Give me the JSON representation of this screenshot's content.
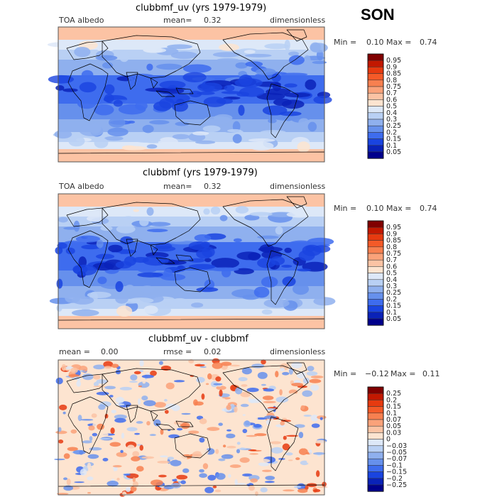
{
  "season": "SON",
  "panels": [
    {
      "title": "clubbmf_uv (yrs 1979-1979)",
      "left_label": "TOA albedo",
      "mean_label": "mean=",
      "mean_value": "0.32",
      "units": "dimensionless",
      "min_label": "Min =",
      "min_value": "0.10",
      "max_label": "Max =",
      "max_value": "0.74",
      "colorbar_ticks": [
        "0.95",
        "0.9",
        "0.85",
        "0.8",
        "0.75",
        "0.7",
        "0.6",
        "0.5",
        "0.4",
        "0.3",
        "0.25",
        "0.2",
        "0.15",
        "0.1",
        "0.05"
      ]
    },
    {
      "title": "clubbmf (yrs 1979-1979)",
      "left_label": "TOA albedo",
      "mean_label": "mean=",
      "mean_value": "0.32",
      "units": "dimensionless",
      "min_label": "Min =",
      "min_value": "0.10",
      "max_label": "Max =",
      "max_value": "0.74",
      "colorbar_ticks": [
        "0.95",
        "0.9",
        "0.85",
        "0.8",
        "0.75",
        "0.7",
        "0.6",
        "0.5",
        "0.4",
        "0.3",
        "0.25",
        "0.2",
        "0.15",
        "0.1",
        "0.05"
      ]
    },
    {
      "title": "clubbmf_uv - clubbmf",
      "left_label": "mean =",
      "left_value": "0.00",
      "mid_label": "rmse =",
      "mid_value": "0.02",
      "units": "dimensionless",
      "min_label": "Min =",
      "min_value": "−0.12",
      "max_label": "Max =",
      "max_value": "0.11",
      "colorbar_ticks": [
        "0.25",
        "0.2",
        "0.15",
        "0.1",
        "0.07",
        "0.05",
        "0.03",
        "0",
        "−0.03",
        "−0.05",
        "−0.07",
        "−0.1",
        "−0.15",
        "−0.2",
        "−0.25"
      ]
    }
  ],
  "colors": {
    "colorbar_abs": [
      "#800000",
      "#c21800",
      "#e63a10",
      "#f45a28",
      "#f78050",
      "#faa27a",
      "#fcc3a4",
      "#fde4d0",
      "#dde8f8",
      "#b9d0f4",
      "#8fb0ee",
      "#6690ec",
      "#3e6cee",
      "#1a44e0",
      "#0a22b8",
      "#00008c"
    ],
    "colorbar_diff": [
      "#800000",
      "#c21800",
      "#e63a10",
      "#f45a28",
      "#f78050",
      "#faa27a",
      "#fcc3a4",
      "#fde4d0",
      "#dde8f8",
      "#b9d0f4",
      "#8fb0ee",
      "#6690ec",
      "#3e6cee",
      "#1a44e0",
      "#0a22b8",
      "#00008c"
    ],
    "map_border": "#555555",
    "coastline": "#000000"
  }
}
